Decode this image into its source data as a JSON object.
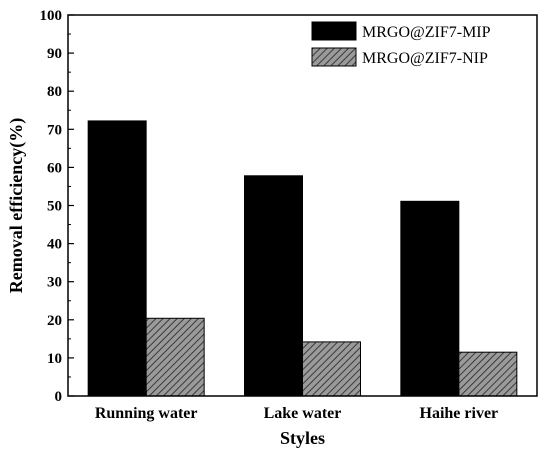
{
  "chart_data": {
    "type": "bar",
    "title": "",
    "xlabel": "Styles",
    "ylabel": "Removal efficiency(%)",
    "categories": [
      "Running water",
      "Lake water",
      "Haihe river"
    ],
    "series": [
      {
        "name": "MRGO@ZIF7-MIP",
        "values": [
          72.2,
          57.8,
          51.1
        ],
        "color": "#000000",
        "pattern": "solid"
      },
      {
        "name": "MRGO@ZIF7-NIP",
        "values": [
          20.4,
          14.2,
          11.5
        ],
        "color": "#808080",
        "pattern": "diagonal-hatch"
      }
    ],
    "ylim": [
      0,
      100
    ],
    "yticks": [
      "0",
      "10",
      "20",
      "30",
      "40",
      "50",
      "60",
      "70",
      "80",
      "90",
      "100"
    ],
    "grid": false,
    "legend_position": "top-right"
  }
}
